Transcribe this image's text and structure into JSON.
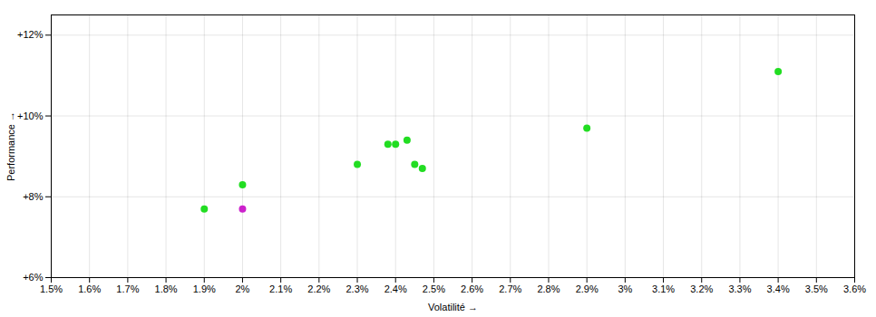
{
  "chart_data": {
    "type": "scatter",
    "xlabel": "Volatilité",
    "ylabel": "Performance",
    "xlim": [
      0.015,
      0.036
    ],
    "ylim": [
      0.06,
      0.125
    ],
    "xticks": [
      {
        "value": 0.015,
        "label": "1.5%"
      },
      {
        "value": 0.016,
        "label": "1.6%"
      },
      {
        "value": 0.017,
        "label": "1.7%"
      },
      {
        "value": 0.018,
        "label": "1.8%"
      },
      {
        "value": 0.019,
        "label": "1.9%"
      },
      {
        "value": 0.02,
        "label": "2%"
      },
      {
        "value": 0.021,
        "label": "2.1%"
      },
      {
        "value": 0.022,
        "label": "2.2%"
      },
      {
        "value": 0.023,
        "label": "2.3%"
      },
      {
        "value": 0.024,
        "label": "2.4%"
      },
      {
        "value": 0.025,
        "label": "2.5%"
      },
      {
        "value": 0.026,
        "label": "2.6%"
      },
      {
        "value": 0.027,
        "label": "2.7%"
      },
      {
        "value": 0.028,
        "label": "2.8%"
      },
      {
        "value": 0.029,
        "label": "2.9%"
      },
      {
        "value": 0.03,
        "label": "3%"
      },
      {
        "value": 0.031,
        "label": "3.1%"
      },
      {
        "value": 0.032,
        "label": "3.2%"
      },
      {
        "value": 0.033,
        "label": "3.3%"
      },
      {
        "value": 0.034,
        "label": "3.4%"
      },
      {
        "value": 0.035,
        "label": "3.5%"
      },
      {
        "value": 0.036,
        "label": "3.6%"
      }
    ],
    "yticks": [
      {
        "value": 0.06,
        "label": "+6%"
      },
      {
        "value": 0.08,
        "label": "+8%"
      },
      {
        "value": 0.1,
        "label": "+10%"
      },
      {
        "value": 0.12,
        "label": "+12%"
      }
    ],
    "grid": true,
    "series": [
      {
        "color": "#22dd22",
        "x": [
          0.019,
          0.02,
          0.023,
          0.024,
          0.0243,
          0.0238,
          0.0245,
          0.0247,
          0.029,
          0.034
        ],
        "values": [
          0.077,
          0.083,
          0.088,
          0.093,
          0.094,
          0.093,
          0.088,
          0.087,
          0.097,
          0.111
        ]
      },
      {
        "color": "#cc22cc",
        "x": [
          0.02
        ],
        "values": [
          0.077
        ]
      }
    ]
  }
}
